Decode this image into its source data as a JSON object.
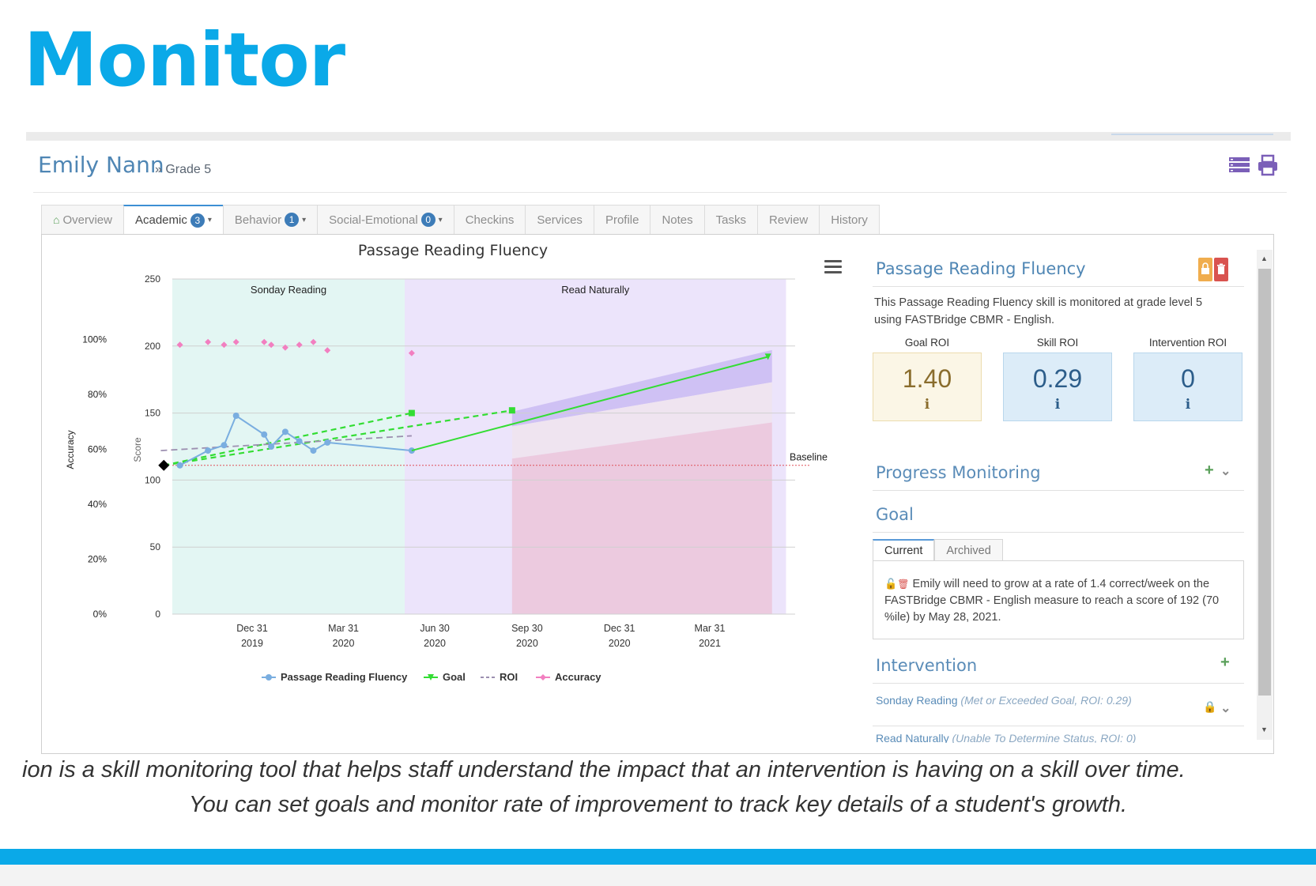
{
  "slide": {
    "title": "Monitor",
    "caption_line1": "ion is a skill monitoring tool that helps staff understand the impact that an intervention is having on a skill over time.",
    "caption_line2": "You can set goals and monitor rate of improvement to track key details of a student's growth.",
    "accent_color": "#0aa9e8"
  },
  "student": {
    "name": "Emily Nann",
    "grade": "» Grade 5",
    "header_icons": [
      "list-view-icon",
      "print-icon"
    ]
  },
  "tabs": [
    {
      "label": "Overview",
      "icon": "home-icon"
    },
    {
      "label": "Academic",
      "badge": "3",
      "caret": "▾",
      "active": true
    },
    {
      "label": "Behavior",
      "badge": "1",
      "caret": "▾"
    },
    {
      "label": "Social-Emotional",
      "badge": "0",
      "caret": "▾"
    },
    {
      "label": "Checkins"
    },
    {
      "label": "Services"
    },
    {
      "label": "Profile"
    },
    {
      "label": "Notes"
    },
    {
      "label": "Tasks"
    },
    {
      "label": "Review"
    },
    {
      "label": "History"
    }
  ],
  "chart_data": {
    "type": "line",
    "title": "Passage Reading Fluency",
    "ylabel": "Score",
    "y2label": "Accuracy",
    "ylim": [
      0,
      250
    ],
    "yticks": [
      0,
      50,
      100,
      150,
      200,
      250
    ],
    "y2ticks": [
      "0%",
      "20%",
      "40%",
      "60%",
      "80%",
      "100%"
    ],
    "xticks": [
      {
        "date": "2019-12-31",
        "line1": "Dec 31",
        "line2": "2019"
      },
      {
        "date": "2020-03-31",
        "line1": "Mar 31",
        "line2": "2020"
      },
      {
        "date": "2020-06-30",
        "line1": "Jun 30",
        "line2": "2020"
      },
      {
        "date": "2020-09-30",
        "line1": "Sep 30",
        "line2": "2020"
      },
      {
        "date": "2020-12-31",
        "line1": "Dec 31",
        "line2": "2020"
      },
      {
        "date": "2021-03-31",
        "line1": "Mar 31",
        "line2": "2021"
      }
    ],
    "bands": [
      {
        "label": "Sonday Reading",
        "from": "2019-09-15",
        "to": "2020-05-31",
        "color": "#e3f6f3"
      },
      {
        "label": "Read Naturally",
        "from": "2020-05-31",
        "to": "2021-06-15",
        "color": "#ece4fb"
      }
    ],
    "baseline": {
      "label": "Baseline",
      "value": 111
    },
    "series": [
      {
        "name": "Passage Reading Fluency",
        "color": "#7aaee0",
        "points": [
          [
            "2019-10-20",
            111
          ],
          [
            "2019-11-17",
            122
          ],
          [
            "2019-12-03",
            126
          ],
          [
            "2019-12-15",
            148
          ],
          [
            "2020-01-12",
            134
          ],
          [
            "2020-01-19",
            125
          ],
          [
            "2020-02-02",
            136
          ],
          [
            "2020-02-16",
            129
          ],
          [
            "2020-03-01",
            122
          ],
          [
            "2020-03-15",
            128
          ],
          [
            "2020-06-07",
            122
          ]
        ]
      },
      {
        "name": "Goal",
        "color": "#33dd33",
        "points": [
          [
            "2020-06-07",
            122
          ],
          [
            "2021-05-28",
            192
          ]
        ]
      },
      {
        "name": "ROI",
        "color": "#9c8fb0",
        "points": [
          [
            "2019-10-01",
            122
          ],
          [
            "2020-06-07",
            133
          ]
        ]
      },
      {
        "name": "Accuracy",
        "color": "#f27fc0",
        "points": [
          [
            "2019-10-20",
            98
          ],
          [
            "2019-11-17",
            99
          ],
          [
            "2019-12-03",
            98
          ],
          [
            "2019-12-15",
            99
          ],
          [
            "2020-01-12",
            99
          ],
          [
            "2020-01-19",
            98
          ],
          [
            "2020-02-02",
            97
          ],
          [
            "2020-02-16",
            98
          ],
          [
            "2020-03-01",
            99
          ],
          [
            "2020-03-15",
            96
          ],
          [
            "2020-06-07",
            95
          ]
        ]
      }
    ],
    "goal_projections": [
      {
        "points": [
          [
            "2019-10-04",
            111
          ],
          [
            "2020-06-07",
            150
          ]
        ]
      },
      {
        "points": [
          [
            "2019-10-04",
            111
          ],
          [
            "2020-09-15",
            152
          ]
        ]
      }
    ],
    "baseline_marker": [
      "2019-10-04",
      111
    ]
  },
  "side": {
    "title": "Passage Reading Fluency",
    "description": "This Passage Reading Fluency skill is monitored at grade level 5 using FASTBridge CBMR - English.",
    "roi": [
      {
        "label": "Goal ROI",
        "value": "1.40",
        "info": "i",
        "bg": "#fbf6e6",
        "border": "#ecdcae",
        "color": "#8a6d2d"
      },
      {
        "label": "Skill ROI",
        "value": "0.29",
        "info": "i",
        "bg": "#dcecf8",
        "border": "#b9d6ec",
        "color": "#2c5d8a"
      },
      {
        "label": "Intervention ROI",
        "value": "0",
        "info": "i",
        "bg": "#dcecf8",
        "border": "#b9d6ec",
        "color": "#2c5d8a"
      }
    ],
    "progress_monitoring": "Progress Monitoring",
    "goal": "Goal",
    "goal_tabs": [
      "Current",
      "Archived"
    ],
    "goal_text": "Emily will need to grow at a rate of 1.4 correct/week on the FASTBridge CBMR - English measure to reach a score of 192 (70 %ile) by May 28, 2021.",
    "intervention": "Intervention",
    "intervention_items": [
      {
        "name": "Sonday Reading",
        "status": "(Met or Exceeded Goal, ROI: 0.29)"
      },
      {
        "name": "Read Naturally",
        "status": "(Unable To Determine Status, ROI: 0)"
      }
    ]
  }
}
